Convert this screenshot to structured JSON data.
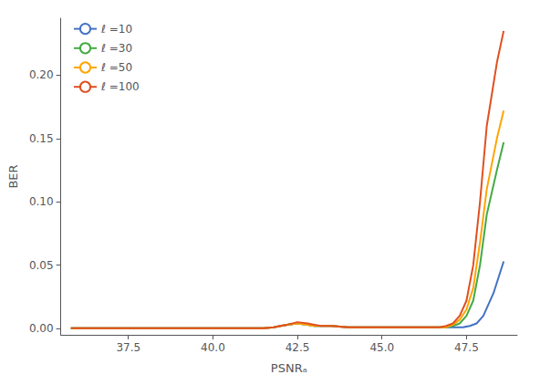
{
  "chart_data": {
    "type": "line",
    "title": "",
    "xlabel": "PSNRₐ",
    "ylabel": "BER",
    "xlim": [
      35.5,
      49.0
    ],
    "ylim": [
      -0.005,
      0.245
    ],
    "xticks": [
      37.5,
      {
        "value": 40.0,
        "label": "40.0"
      },
      42.5,
      {
        "value": 45.0,
        "label": "45.0"
      },
      47.5
    ],
    "yticks": [
      {
        "value": 0.0,
        "label": "0.00"
      },
      0.05,
      {
        "value": 0.1,
        "label": "0.10"
      },
      0.15,
      {
        "value": 0.2,
        "label": "0.20"
      }
    ],
    "grid": false,
    "legend": "upper left",
    "series": [
      {
        "name": "ℓ =10",
        "color": "#4472c4",
        "x": [
          35.8,
          36.2,
          36.6,
          37.0,
          37.5,
          38.0,
          38.5,
          39.0,
          39.5,
          40.0,
          40.5,
          41.0,
          41.5,
          41.8,
          42.0,
          42.2,
          42.5,
          42.8,
          43.0,
          43.2,
          43.5,
          44.0,
          44.5,
          45.0,
          45.5,
          46.0,
          46.5,
          46.8,
          47.0,
          47.2,
          47.4,
          47.6,
          47.8,
          48.0,
          48.3,
          48.6
        ],
        "values": [
          0.0003,
          0.0003,
          0.0003,
          0.0003,
          0.0003,
          0.0003,
          0.0003,
          0.0003,
          0.0003,
          0.0003,
          0.0003,
          0.0003,
          0.0003,
          0.001,
          0.002,
          0.003,
          0.004,
          0.003,
          0.002,
          0.002,
          0.002,
          0.001,
          0.001,
          0.001,
          0.001,
          0.001,
          0.001,
          0.001,
          0.001,
          0.001,
          0.001,
          0.002,
          0.004,
          0.01,
          0.028,
          0.053
        ]
      },
      {
        "name": "ℓ =30",
        "color": "#44aa44",
        "x": [
          35.8,
          36.2,
          36.6,
          37.0,
          37.5,
          38.0,
          38.5,
          39.0,
          39.5,
          40.0,
          40.5,
          41.0,
          41.5,
          41.8,
          42.0,
          42.2,
          42.5,
          42.8,
          43.0,
          43.2,
          43.5,
          44.0,
          44.5,
          45.0,
          45.5,
          46.0,
          46.5,
          46.7,
          46.9,
          47.1,
          47.3,
          47.5,
          47.7,
          47.9,
          48.1,
          48.4,
          48.6
        ],
        "values": [
          0.0003,
          0.0003,
          0.0003,
          0.0003,
          0.0003,
          0.0003,
          0.0003,
          0.0003,
          0.0003,
          0.0003,
          0.0003,
          0.0003,
          0.0003,
          0.001,
          0.002,
          0.003,
          0.004,
          0.003,
          0.002,
          0.002,
          0.002,
          0.001,
          0.001,
          0.001,
          0.001,
          0.001,
          0.001,
          0.001,
          0.001,
          0.002,
          0.004,
          0.01,
          0.022,
          0.05,
          0.09,
          0.125,
          0.147
        ]
      },
      {
        "name": "ℓ =50",
        "color": "#ffa500",
        "x": [
          35.8,
          36.2,
          36.6,
          37.0,
          37.5,
          38.0,
          38.5,
          39.0,
          39.5,
          40.0,
          40.5,
          41.0,
          41.5,
          41.8,
          42.0,
          42.2,
          42.5,
          42.8,
          43.0,
          43.2,
          43.5,
          44.0,
          44.5,
          45.0,
          45.5,
          46.0,
          46.5,
          46.7,
          46.9,
          47.1,
          47.3,
          47.5,
          47.7,
          47.9,
          48.1,
          48.4,
          48.6
        ],
        "values": [
          0.0003,
          0.0003,
          0.0003,
          0.0003,
          0.0003,
          0.0003,
          0.0003,
          0.0003,
          0.0003,
          0.0003,
          0.0003,
          0.0003,
          0.0003,
          0.001,
          0.002,
          0.003,
          0.004,
          0.003,
          0.002,
          0.002,
          0.002,
          0.001,
          0.001,
          0.001,
          0.001,
          0.001,
          0.001,
          0.001,
          0.001,
          0.003,
          0.007,
          0.015,
          0.032,
          0.068,
          0.11,
          0.15,
          0.172
        ]
      },
      {
        "name": "ℓ =100",
        "color": "#e05020",
        "x": [
          35.8,
          36.2,
          36.6,
          37.0,
          37.5,
          38.0,
          38.5,
          39.0,
          39.5,
          40.0,
          40.5,
          41.0,
          41.5,
          41.8,
          42.0,
          42.2,
          42.5,
          42.8,
          43.0,
          43.2,
          43.5,
          44.0,
          44.5,
          45.0,
          45.5,
          46.0,
          46.5,
          46.7,
          46.9,
          47.1,
          47.3,
          47.5,
          47.7,
          47.9,
          48.1,
          48.4,
          48.6
        ],
        "values": [
          0.0003,
          0.0003,
          0.0003,
          0.0003,
          0.0003,
          0.0003,
          0.0003,
          0.0003,
          0.0003,
          0.0003,
          0.0003,
          0.0003,
          0.0003,
          0.001,
          0.002,
          0.003,
          0.005,
          0.004,
          0.003,
          0.002,
          0.002,
          0.001,
          0.001,
          0.001,
          0.001,
          0.001,
          0.001,
          0.001,
          0.002,
          0.004,
          0.01,
          0.022,
          0.05,
          0.1,
          0.16,
          0.21,
          0.235
        ]
      }
    ]
  }
}
